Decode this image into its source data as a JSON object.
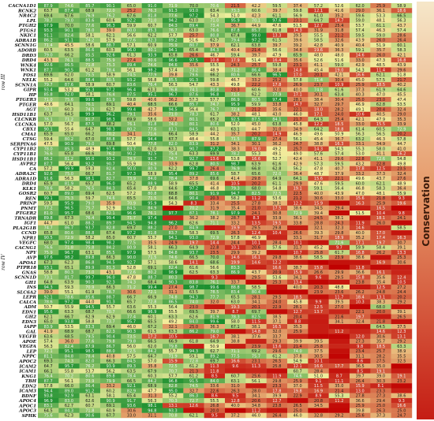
{
  "chart_data": {
    "type": "heatmap",
    "legend_title": "Conservation",
    "groups": [
      {
        "name": "row III",
        "start": 0,
        "end": 31
      },
      {
        "name": "row IV",
        "start": 32,
        "end": 72
      }
    ],
    "rows": [
      "CACNA1D1",
      "RCNK2",
      "NR4C2",
      "LPL",
      "PTGH2",
      "PTGS1",
      "NKIC1",
      "ADRA1B",
      "SCNN1G",
      "ADORB",
      "DRD3",
      "DRD4",
      "WNK4",
      "WNK1",
      "FOS1",
      "NELK",
      "SCNN1A",
      "GIPR",
      "HP",
      "PTGER3",
      "PTGER",
      "AGT",
      "HSD11B1",
      "CLCNKB",
      "CLCNKA",
      "CBX1",
      "CMA1",
      "CTSG",
      "SERPINA6",
      "CYP11B2",
      "CYP11B1",
      "HSD11B1",
      "AVPR2",
      "CA",
      "ADRA2C",
      "ADRA1D",
      "DRD4",
      "KLK1",
      "GOSR2",
      "REN",
      "PRINP",
      "PNMT",
      "PTGER2",
      "TRNADR",
      "IGF1",
      "PLA2G1B",
      "CCND",
      "NPR1",
      "VEGFC",
      "CACNG1",
      "NPY",
      "AVP",
      "APOA1",
      "PTPR18",
      "GNAS",
      "SCNN1D",
      "GH1",
      "INS",
      "SLC6A2",
      "LEPR",
      "CALCA",
      "ADM",
      "EDN1",
      "GH2",
      "EDN3",
      "IAPP",
      "GAL",
      "VEGFB",
      "APOE",
      "VEGFA",
      "LEP",
      "NPPC",
      "APOC2",
      "ICAM2",
      "ICAM1",
      "KNG1",
      "TBH",
      "EDN2",
      "ICAM3",
      "BDNF",
      "APOC4",
      "APOC1",
      "APOC3",
      "SPHK"
    ],
    "n_cols": 18,
    "color_scale": {
      "low": "#c00000",
      "mid": "#f3ef9e",
      "high": "#1a8f2e"
    },
    "values_seed": 73,
    "value_range": [
      0,
      100
    ]
  }
}
